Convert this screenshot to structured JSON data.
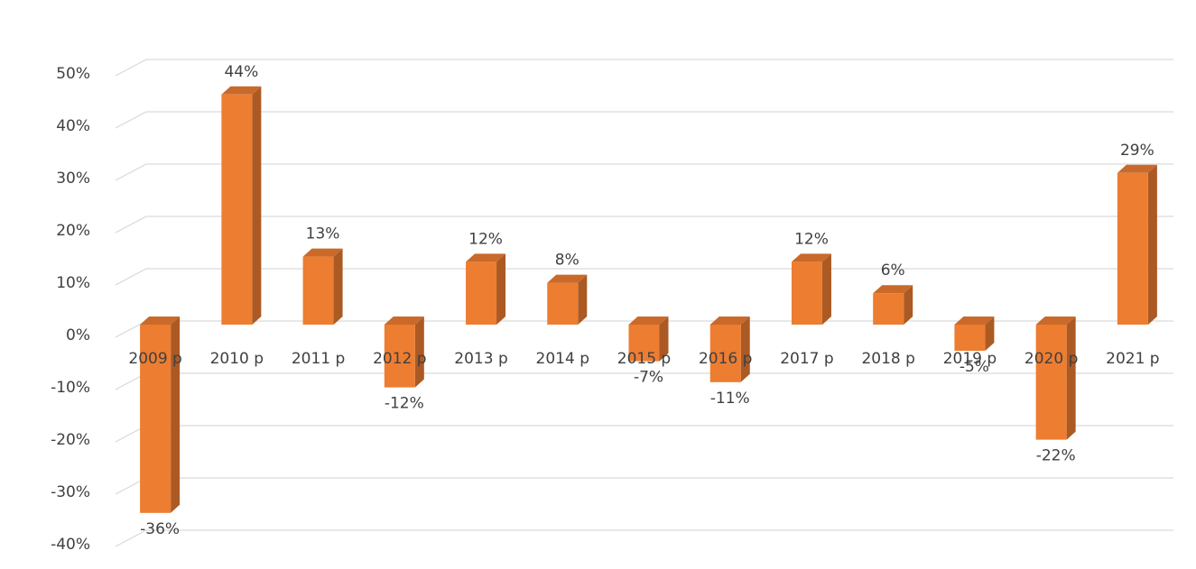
{
  "chart_data": {
    "type": "bar3d",
    "categories": [
      "2009 р",
      "2010 р",
      "2011 р",
      "2012 р",
      "2013 р",
      "2014 р",
      "2015 р",
      "2016 р",
      "2017 р",
      "2018 р",
      "2019 р",
      "2020 р",
      "2021 р"
    ],
    "values": [
      -36,
      44,
      13,
      -12,
      12,
      8,
      -7,
      -11,
      12,
      6,
      -5,
      -22,
      29
    ],
    "value_labels": [
      "-36%",
      "44%",
      "13%",
      "-12%",
      "12%",
      "8%",
      "-7%",
      "-11%",
      "12%",
      "6%",
      "-5%",
      "-22%",
      "29%"
    ],
    "color": "#ed7d31",
    "ylim": [
      -40,
      50
    ],
    "yticks": [
      {
        "value": -40,
        "label": "-40%"
      },
      {
        "value": -30,
        "label": "-30%"
      },
      {
        "value": -20,
        "label": "-20%"
      },
      {
        "value": -10,
        "label": "-10%"
      },
      {
        "value": 0,
        "label": "0%"
      },
      {
        "value": 10,
        "label": "10%"
      },
      {
        "value": 20,
        "label": "20%"
      },
      {
        "value": 30,
        "label": "30%"
      },
      {
        "value": 40,
        "label": "40%"
      },
      {
        "value": 50,
        "label": "50%"
      }
    ],
    "grid": true
  }
}
